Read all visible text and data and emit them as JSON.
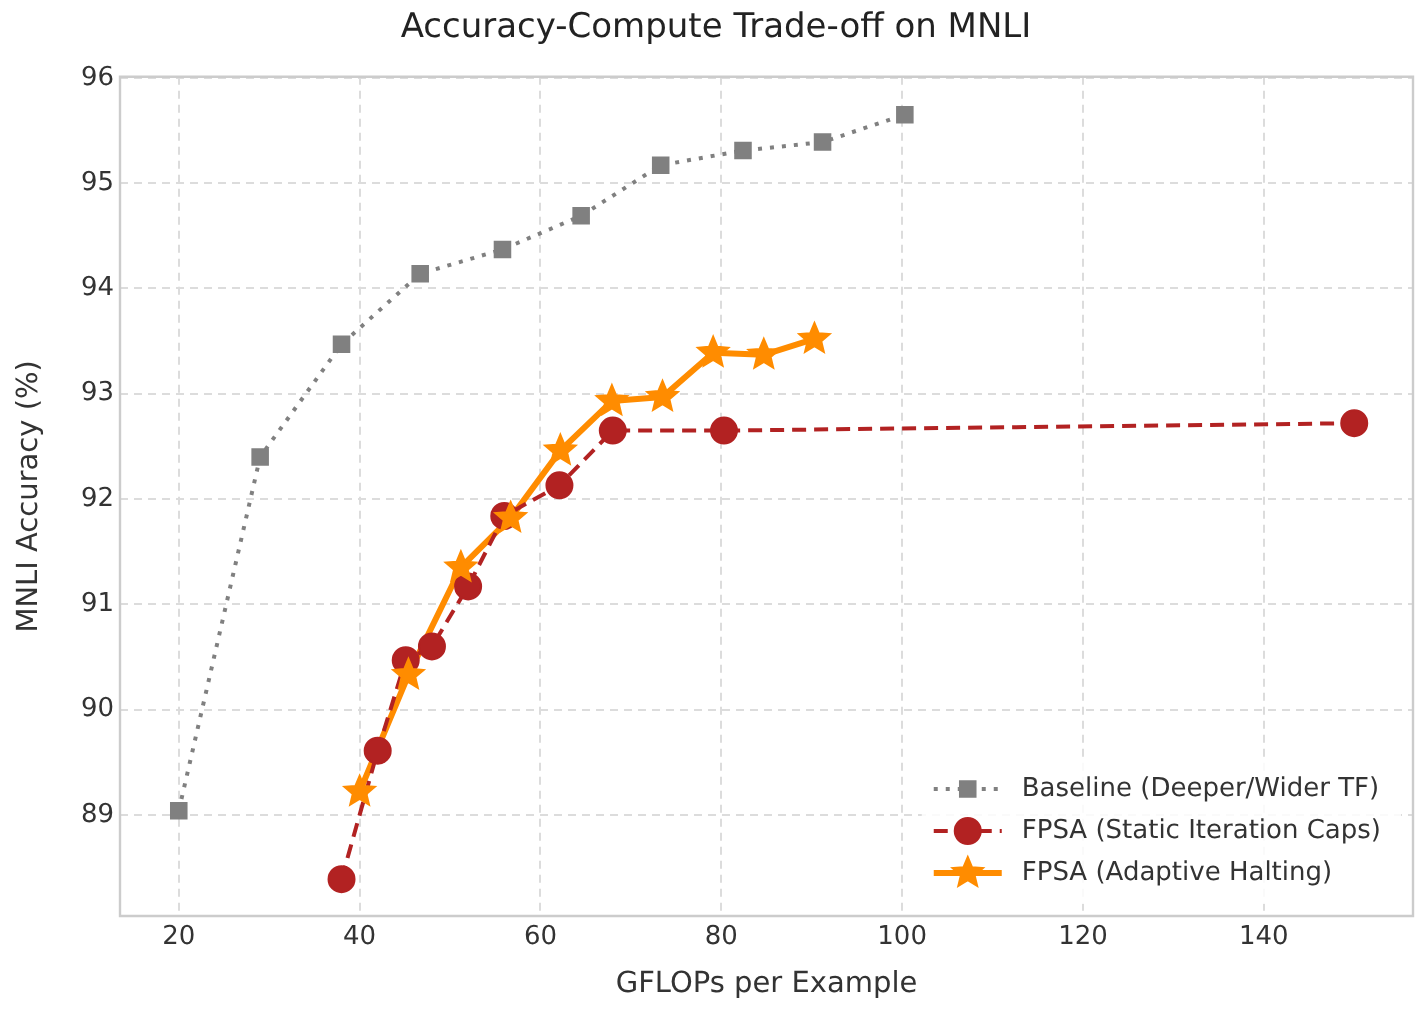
{
  "chart_data": {
    "type": "line",
    "title": "Accuracy-Compute Trade-off on MNLI",
    "xlabel": "GFLOPs per Example",
    "ylabel": "MNLI Accuracy (%)",
    "xlim": [
      13.5,
      156.5
    ],
    "xticks": [
      20,
      40,
      60,
      80,
      100,
      120,
      140
    ],
    "ylim": [
      88.04,
      96.01
    ],
    "yticks": [
      89,
      90,
      91,
      92,
      93,
      94,
      95,
      96
    ],
    "grid": true,
    "legend": "bottom right",
    "series": [
      {
        "name": "Baseline (Deeper/Wider TF)",
        "color": "#808080",
        "marker": "square",
        "line_style": "dotted",
        "x": [
          20,
          29,
          38,
          46.7,
          55.8,
          64.5,
          73.3,
          82.4,
          91.2,
          100.3
        ],
        "values": [
          89.04,
          92.4,
          93.47,
          94.14,
          94.37,
          94.69,
          95.17,
          95.31,
          95.39,
          95.65
        ]
      },
      {
        "name": "FPSA (Static Iteration Caps)",
        "color": "#b22222",
        "marker": "circle",
        "line_style": "dashed",
        "x": [
          38,
          42,
          45.1,
          48,
          52,
          56,
          62.1,
          68,
          80.3,
          150
        ],
        "values": [
          88.39,
          89.61,
          90.47,
          90.6,
          91.17,
          91.84,
          92.13,
          92.65,
          92.65,
          92.72
        ]
      },
      {
        "name": "FPSA (Adaptive Halting)",
        "color": "#ff8c00",
        "marker": "star",
        "line_style": "solid",
        "x": [
          40,
          45.4,
          51.2,
          56.7,
          62.2,
          67.9,
          73.5,
          79.1,
          84.7,
          90.3
        ],
        "values": [
          89.22,
          90.33,
          91.35,
          91.82,
          92.46,
          92.93,
          92.97,
          93.39,
          93.37,
          93.52
        ]
      }
    ]
  }
}
